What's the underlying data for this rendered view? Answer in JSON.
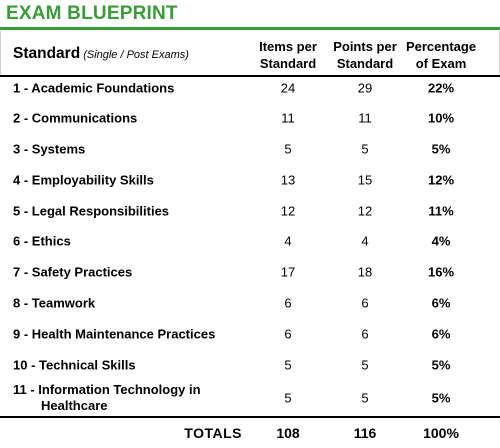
{
  "title": "EXAM BLUEPRINT",
  "colors": {
    "title": "#3b9b3a",
    "rule": "#3b9b3a",
    "text": "#000000"
  },
  "header": {
    "standard": "Standard",
    "standard_note": "(Single / Post Exams)",
    "items_line1": "Items per",
    "items_line2": "Standard",
    "points_line1": "Points per",
    "points_line2": "Standard",
    "pct_line1": "Percentage",
    "pct_line2": "of Exam"
  },
  "rows": [
    {
      "label": "1 - Academic Foundations",
      "items": "24",
      "points": "29",
      "pct": "22%"
    },
    {
      "label": "2 - Communications",
      "items": "11",
      "points": "11",
      "pct": "10%"
    },
    {
      "label": "3 - Systems",
      "items": "5",
      "points": "5",
      "pct": "5%"
    },
    {
      "label": "4 - Employability Skills",
      "items": "13",
      "points": "15",
      "pct": "12%"
    },
    {
      "label": "5 - Legal Responsibilities",
      "items": "12",
      "points": "12",
      "pct": "11%"
    },
    {
      "label": "6 - Ethics",
      "items": "4",
      "points": "4",
      "pct": "4%"
    },
    {
      "label": "7 - Safety Practices",
      "items": "17",
      "points": "18",
      "pct": "16%"
    },
    {
      "label": "8 - Teamwork",
      "items": "6",
      "points": "6",
      "pct": "6%"
    },
    {
      "label": "9 - Health Maintenance Practices",
      "items": "6",
      "points": "6",
      "pct": "6%"
    },
    {
      "label": "10 - Technical Skills",
      "items": "5",
      "points": "5",
      "pct": "5%"
    },
    {
      "label_line1": "11 - Information Technology in",
      "label_line2": "Healthcare",
      "items": "5",
      "points": "5",
      "pct": "5%"
    }
  ],
  "totals": {
    "label": "TOTALS",
    "items": "108",
    "points": "116",
    "pct": "100%"
  }
}
